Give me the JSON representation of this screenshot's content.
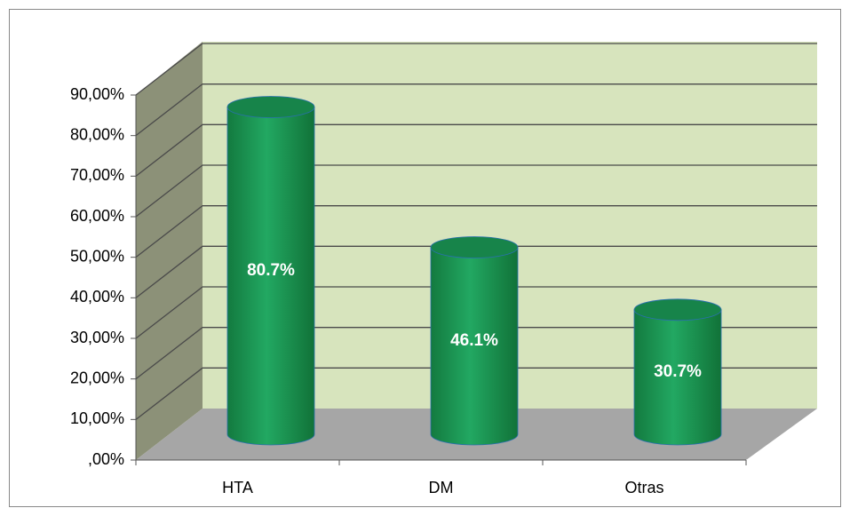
{
  "chart_data": {
    "type": "bar3d",
    "categories": [
      "HTA",
      "DM",
      "Otras"
    ],
    "values": [
      80.7,
      46.1,
      30.7
    ],
    "value_labels": [
      "80.7%",
      "46.1%",
      "30.7%"
    ],
    "color": "#1fa35b",
    "ylim": [
      0,
      90
    ],
    "yticks": [
      {
        "value": 0,
        "label": ",00%"
      },
      {
        "value": 10,
        "label": "10,00%"
      },
      {
        "value": 20,
        "label": "20,00%"
      },
      {
        "value": 30,
        "label": "30,00%"
      },
      {
        "value": 40,
        "label": "40,00%"
      },
      {
        "value": 50,
        "label": "50,00%"
      },
      {
        "value": 60,
        "label": "60,00%"
      },
      {
        "value": 70,
        "label": "70,00%"
      },
      {
        "value": 80,
        "label": "80,00%"
      },
      {
        "value": 90,
        "label": "90,00%"
      }
    ],
    "grid": true
  }
}
